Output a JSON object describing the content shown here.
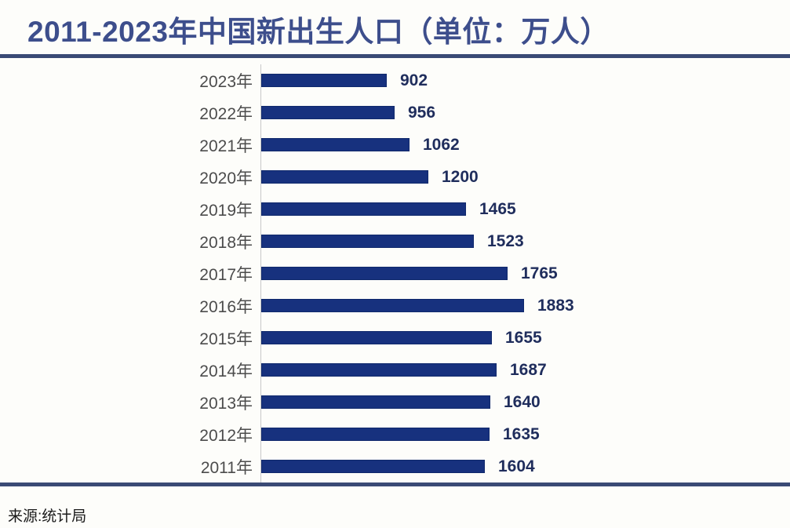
{
  "title": "2011-2023年中国新出生人口（单位：万人）",
  "source": "来源:统计局",
  "colors": {
    "title": "#3d4e8c",
    "divider": "#3a4a75",
    "bar": "#17317e",
    "bar_border": "#10296c",
    "value_label": "#1f2d5c",
    "year_label": "#4c4c4c",
    "axis": "#c9c9c9",
    "background": "#fdfdfa",
    "source_text": "#1a1a1a"
  },
  "chart_data": {
    "type": "bar",
    "orientation": "horizontal",
    "title": "2011-2023年中国新出生人口（单位：万人）",
    "unit": "万人",
    "categories": [
      "2023年",
      "2022年",
      "2021年",
      "2020年",
      "2019年",
      "2018年",
      "2017年",
      "2016年",
      "2015年",
      "2014年",
      "2013年",
      "2012年",
      "2011年"
    ],
    "values": [
      902,
      956,
      1062,
      1200,
      1465,
      1523,
      1765,
      1883,
      1655,
      1687,
      1640,
      1635,
      1604
    ],
    "xlim": [
      0,
      1883
    ],
    "data_labels": true,
    "grid": false,
    "legend": false,
    "source_note": "来源:统计局"
  }
}
